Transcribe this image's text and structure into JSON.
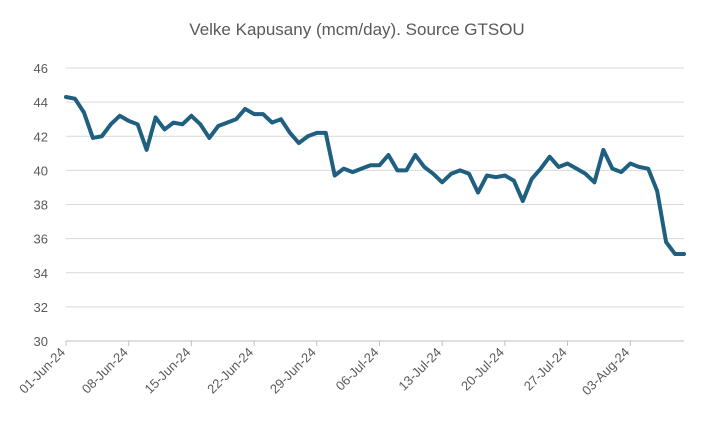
{
  "chart_data": {
    "type": "line",
    "title": "Velke Kapusany (mcm/day). Source GTSOU",
    "xlabel": "",
    "ylabel": "",
    "ylim": [
      30,
      46
    ],
    "y_ticks": [
      30,
      32,
      34,
      36,
      38,
      40,
      42,
      44,
      46
    ],
    "grid": true,
    "legend": "none",
    "x_tick_labels": [
      "01-Jun-24",
      "08-Jun-24",
      "15-Jun-24",
      "22-Jun-24",
      "29-Jun-24",
      "06-Jul-24",
      "13-Jul-24",
      "20-Jul-24",
      "27-Jul-24",
      "03-Aug-24"
    ],
    "x": [
      "01-Jun-24",
      "02-Jun-24",
      "03-Jun-24",
      "04-Jun-24",
      "05-Jun-24",
      "06-Jun-24",
      "07-Jun-24",
      "08-Jun-24",
      "09-Jun-24",
      "10-Jun-24",
      "11-Jun-24",
      "12-Jun-24",
      "13-Jun-24",
      "14-Jun-24",
      "15-Jun-24",
      "16-Jun-24",
      "17-Jun-24",
      "18-Jun-24",
      "19-Jun-24",
      "20-Jun-24",
      "21-Jun-24",
      "22-Jun-24",
      "23-Jun-24",
      "24-Jun-24",
      "25-Jun-24",
      "26-Jun-24",
      "27-Jun-24",
      "28-Jun-24",
      "29-Jun-24",
      "30-Jun-24",
      "01-Jul-24",
      "02-Jul-24",
      "03-Jul-24",
      "04-Jul-24",
      "05-Jul-24",
      "06-Jul-24",
      "07-Jul-24",
      "08-Jul-24",
      "09-Jul-24",
      "10-Jul-24",
      "11-Jul-24",
      "12-Jul-24",
      "13-Jul-24",
      "14-Jul-24",
      "15-Jul-24",
      "16-Jul-24",
      "17-Jul-24",
      "18-Jul-24",
      "19-Jul-24",
      "20-Jul-24",
      "21-Jul-24",
      "22-Jul-24",
      "23-Jul-24",
      "24-Jul-24",
      "25-Jul-24",
      "26-Jul-24",
      "27-Jul-24",
      "28-Jul-24",
      "29-Jul-24",
      "30-Jul-24",
      "31-Jul-24",
      "01-Aug-24",
      "02-Aug-24",
      "03-Aug-24",
      "04-Aug-24",
      "05-Aug-24",
      "06-Aug-24",
      "07-Aug-24",
      "08-Aug-24",
      "09-Aug-24"
    ],
    "series": [
      {
        "color": "#1f5f7f",
        "values": [
          44.3,
          44.2,
          43.4,
          41.9,
          42.0,
          42.7,
          43.2,
          42.9,
          42.7,
          41.2,
          43.1,
          42.4,
          42.8,
          42.7,
          43.2,
          42.7,
          41.9,
          42.6,
          42.8,
          43.0,
          43.6,
          43.3,
          43.3,
          42.8,
          43.0,
          42.2,
          41.6,
          42.0,
          42.2,
          42.2,
          39.7,
          40.1,
          39.9,
          40.1,
          40.3,
          40.3,
          40.9,
          40.0,
          40.0,
          40.9,
          40.2,
          39.8,
          39.3,
          39.8,
          40.0,
          39.8,
          38.7,
          39.7,
          39.6,
          39.7,
          39.4,
          38.2,
          39.5,
          40.1,
          40.8,
          40.2,
          40.4,
          40.1,
          39.8,
          39.3,
          41.2,
          40.1,
          39.9,
          40.4,
          40.2,
          40.1,
          38.8,
          35.8,
          35.1,
          35.1
        ]
      }
    ]
  }
}
